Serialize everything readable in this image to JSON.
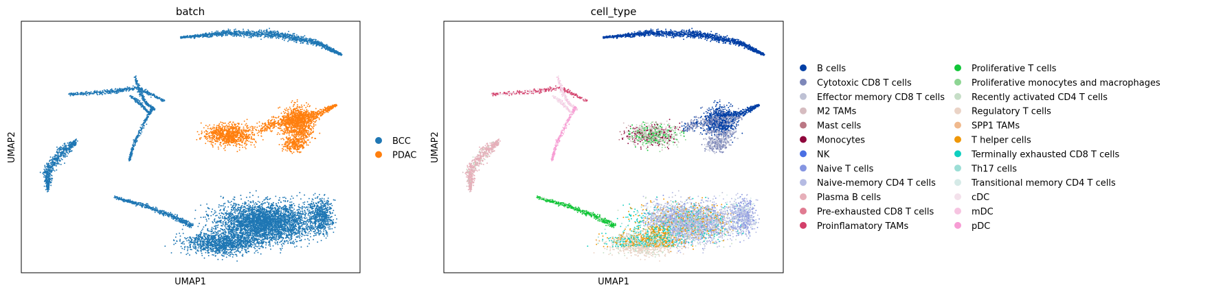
{
  "chart_data": [
    {
      "type": "scatter",
      "title": "batch",
      "xlabel": "UMAP1",
      "ylabel": "UMAP2",
      "grid": false,
      "ticks": false,
      "legend_position": "right",
      "legend": [
        {
          "name": "BCC",
          "color": "#1f77b4"
        },
        {
          "name": "PDAC",
          "color": "#ff7f0e"
        }
      ],
      "clusters": [
        {
          "region": "top streak",
          "category": "BCC"
        },
        {
          "region": "upper-left branches",
          "category": "BCC"
        },
        {
          "region": "left small cluster",
          "category": "BCC"
        },
        {
          "region": "middle right cluster",
          "category": "PDAC"
        },
        {
          "region": "large bottom cluster",
          "category": "BCC"
        }
      ]
    },
    {
      "type": "scatter",
      "title": "cell_type",
      "xlabel": "UMAP1",
      "ylabel": "UMAP2",
      "grid": false,
      "ticks": false,
      "legend_position": "right",
      "legend_columns": 2,
      "legend": [
        {
          "name": "B cells",
          "color": "#023fa5"
        },
        {
          "name": "Cytotoxic CD8 T cells",
          "color": "#7d87b9"
        },
        {
          "name": "Effector memory CD8 T cells",
          "color": "#bec1d4"
        },
        {
          "name": "M2 TAMs",
          "color": "#d6bcc0"
        },
        {
          "name": "Mast cells",
          "color": "#bb7784"
        },
        {
          "name": "Monocytes",
          "color": "#8e063b"
        },
        {
          "name": "NK",
          "color": "#4a6fe3"
        },
        {
          "name": "Naive T cells",
          "color": "#8595e1"
        },
        {
          "name": "Naive-memory CD4 T cells",
          "color": "#b5bbe3"
        },
        {
          "name": "Plasma B cells",
          "color": "#e6afb9"
        },
        {
          "name": "Pre-exhausted CD8 T cells",
          "color": "#e07b91"
        },
        {
          "name": "Proinflamatory TAMs",
          "color": "#d33f6a"
        },
        {
          "name": "Proliferative T cells",
          "color": "#11c638"
        },
        {
          "name": "Proliferative monocytes and macrophages",
          "color": "#8dd593"
        },
        {
          "name": "Recently activated CD4 T cells",
          "color": "#c6dec7"
        },
        {
          "name": "Regulatory T cells",
          "color": "#ead3c6"
        },
        {
          "name": "SPP1 TAMs",
          "color": "#f0b98d"
        },
        {
          "name": "T helper cells",
          "color": "#ef9708"
        },
        {
          "name": "Terminally exhausted CD8 T cells",
          "color": "#0fcfc0"
        },
        {
          "name": "Th17 cells",
          "color": "#9cded6"
        },
        {
          "name": "Transitional memory CD4 T cells",
          "color": "#d5eae7"
        },
        {
          "name": "cDC",
          "color": "#f3e1eb"
        },
        {
          "name": "mDC",
          "color": "#f6c4e1"
        },
        {
          "name": "pDC",
          "color": "#f79cd4"
        }
      ]
    }
  ]
}
